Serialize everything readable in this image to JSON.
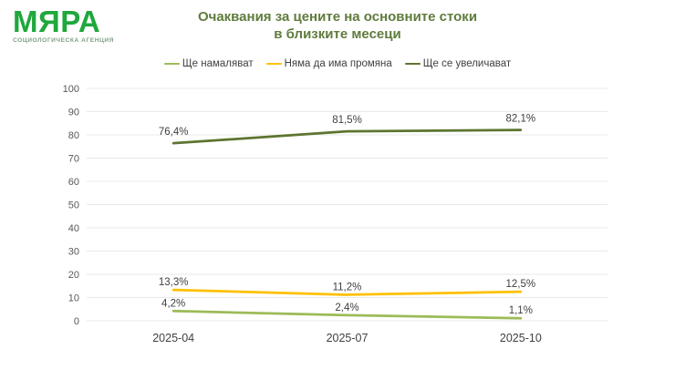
{
  "logo": {
    "name": "МЯРА",
    "tagline": "СОЦИОЛОГИЧЕСКА АГЕНЦИЯ"
  },
  "title": {
    "line1": "Очаквания за цените на основните стоки",
    "line2": "в близките месеци"
  },
  "colors": {
    "logo_green": "#1FA83C",
    "logo_tagline": "#7E9F86",
    "title_text": "#5F7B3C",
    "grid": "#E8E8E8",
    "tick_label": "#595959",
    "axis_label": "#404040",
    "data_label": "#404040",
    "legend_text": "#404040"
  },
  "chart_data": {
    "type": "line",
    "title": "Очаквания за цените на основните стоки в близките месеци",
    "categories": [
      "2025-04",
      "2025-07",
      "2025-10"
    ],
    "series": [
      {
        "name": "Ще намаляват",
        "color": "#9CBB58",
        "values": [
          4.2,
          2.4,
          1.1
        ],
        "labels": [
          "4,2%",
          "2,4%",
          "1,1%"
        ]
      },
      {
        "name": "Няма да има промяна",
        "color": "#FFC000",
        "values": [
          13.3,
          11.2,
          12.5
        ],
        "labels": [
          "13,3%",
          "11,2%",
          "12,5%"
        ]
      },
      {
        "name": "Ще се увеличават",
        "color": "#5E7430",
        "values": [
          76.4,
          81.5,
          82.1
        ],
        "labels": [
          "76,4%",
          "81,5%",
          "82,1%"
        ]
      }
    ],
    "ylim": [
      0,
      100
    ],
    "yticks": [
      0,
      10,
      20,
      30,
      40,
      50,
      60,
      70,
      80,
      90,
      100
    ],
    "grid": true,
    "legend_position": "top"
  }
}
